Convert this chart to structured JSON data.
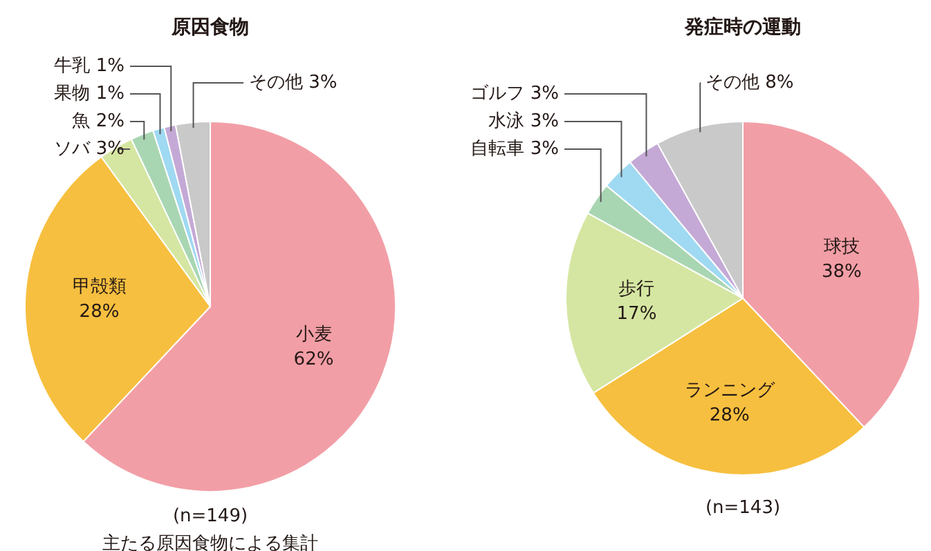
{
  "chart_data": [
    {
      "type": "pie",
      "title": "原因食物",
      "categories": [
        "小麦",
        "甲殻類",
        "ソバ",
        "魚",
        "果物",
        "牛乳",
        "その他"
      ],
      "values": [
        62,
        28,
        3,
        2,
        1,
        1,
        3
      ],
      "colors": [
        "#f29ea6",
        "#f7bf3f",
        "#d5e6a2",
        "#a9d6b2",
        "#9fd9f2",
        "#c4a9d6",
        "#c9c9c9"
      ],
      "value_labels": [
        "62%",
        "28%",
        "3%",
        "2%",
        "1%",
        "1%",
        "3%"
      ],
      "annotations": [
        "(n=149)",
        "主たる原因食物による集計"
      ]
    },
    {
      "type": "pie",
      "title": "発症時の運動",
      "categories": [
        "球技",
        "ランニング",
        "歩行",
        "自転車",
        "水泳",
        "ゴルフ",
        "その他"
      ],
      "values": [
        38,
        28,
        17,
        3,
        3,
        3,
        8
      ],
      "colors": [
        "#f29ea6",
        "#f7bf3f",
        "#d5e6a2",
        "#a9d6b2",
        "#9fd9f2",
        "#c4a9d6",
        "#c9c9c9"
      ],
      "value_labels": [
        "38%",
        "28%",
        "17%",
        "3%",
        "3%",
        "3%",
        "8%"
      ],
      "annotations": [
        "(n=143)"
      ]
    }
  ]
}
